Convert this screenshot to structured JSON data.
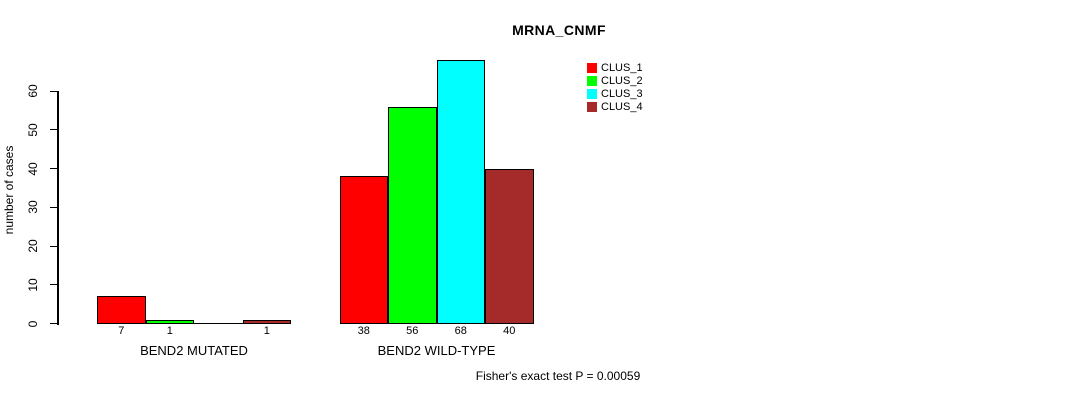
{
  "chart_data": {
    "type": "bar",
    "title": "MRNA_CNMF",
    "ylabel": "number of cases",
    "xlabel": "",
    "yticks": [
      0,
      10,
      20,
      30,
      40,
      50,
      60
    ],
    "ylim": [
      0,
      68
    ],
    "grid": false,
    "legend_position": "top-right",
    "categories": [
      "BEND2 MUTATED",
      "BEND2 WILD-TYPE"
    ],
    "series": [
      {
        "name": "CLUS_1",
        "color": "#FF0000",
        "values": [
          7,
          38
        ]
      },
      {
        "name": "CLUS_2",
        "color": "#00FF00",
        "values": [
          1,
          56
        ]
      },
      {
        "name": "CLUS_3",
        "color": "#00FFFF",
        "values": [
          0,
          68
        ]
      },
      {
        "name": "CLUS_4",
        "color": "#A52A2A",
        "values": [
          1,
          40
        ]
      }
    ],
    "groups": [
      {
        "label": "BEND2 MUTATED",
        "values": [
          7,
          1,
          0,
          1
        ],
        "value_labels": [
          "7",
          "1",
          "",
          "1"
        ]
      },
      {
        "label": "BEND2 WILD-TYPE",
        "values": [
          38,
          56,
          68,
          40
        ],
        "value_labels": [
          "38",
          "56",
          "68",
          "40"
        ]
      }
    ],
    "annotation": "Fisher's exact test P = 0.00059"
  }
}
